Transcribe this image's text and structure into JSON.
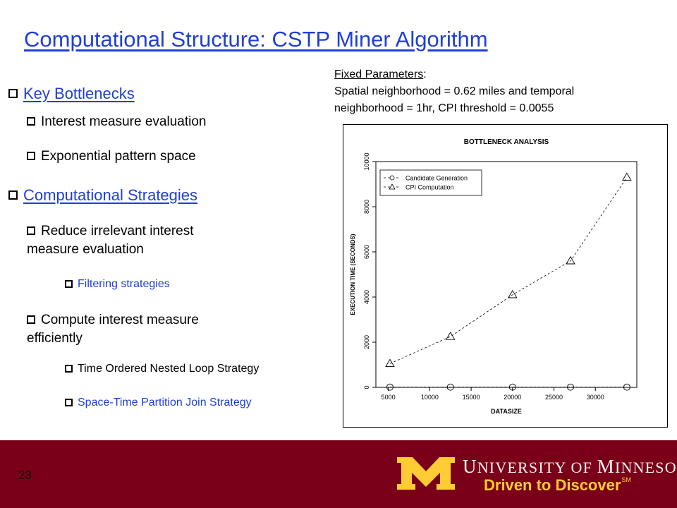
{
  "slide": {
    "title": "Computational Structure: CSTP Miner Algorithm",
    "page_number": "23",
    "colors": {
      "title_blue": "#1f3fd6",
      "footer_maroon": "#7a0019",
      "gold": "#ffcc33"
    }
  },
  "bullets": {
    "key_bottlenecks": "Key Bottlenecks",
    "interest_measure": "Interest measure evaluation",
    "pattern_space": "Exponential pattern space",
    "computational_strategies": "Computational Strategies",
    "reduce_line1": "Reduce irrelevant interest",
    "reduce_line2": "measure evaluation",
    "filtering": "Filtering strategies",
    "compute_line1": "Compute interest measure",
    "compute_line2": "efficiently",
    "time_ordered": "Time Ordered Nested Loop Strategy",
    "space_time": "Space-Time Partition Join Strategy"
  },
  "params": {
    "heading": "Fixed Parameters",
    "colon": ":",
    "line1": "Spatial neighborhood = 0.62 miles and temporal",
    "line2": "neighborhood = 1hr, CPI threshold = 0.0055"
  },
  "logo": {
    "university_u": "U",
    "university_rest": "NIVERSITY OF ",
    "minnesota_m": "M",
    "minnesota_rest": "INNESOTA",
    "tagline": "Driven to Discover",
    "tagline_mark": "SM",
    "icon": "block-m-icon"
  },
  "chart_data": {
    "type": "line",
    "title": "BOTTLENECK ANALYSIS",
    "xlabel": "DATASIZE",
    "ylabel": "EXECUTION TIME (SECONDS)",
    "x": [
      5200,
      12500,
      20000,
      27000,
      33800
    ],
    "xlim": [
      3500,
      35000
    ],
    "ylim": [
      0,
      10000
    ],
    "xticks": [
      5000,
      10000,
      15000,
      20000,
      25000,
      30000
    ],
    "yticks": [
      0,
      2000,
      4000,
      6000,
      8000,
      10000
    ],
    "series": [
      {
        "name": "Candidate Generation",
        "marker": "circle",
        "values": [
          10,
          10,
          10,
          10,
          10
        ]
      },
      {
        "name": "CPI Computation",
        "marker": "triangle",
        "values": [
          1050,
          2250,
          4100,
          5600,
          9300
        ]
      }
    ],
    "legend_position": "top-left",
    "line_style": "dashed",
    "grid": false
  }
}
